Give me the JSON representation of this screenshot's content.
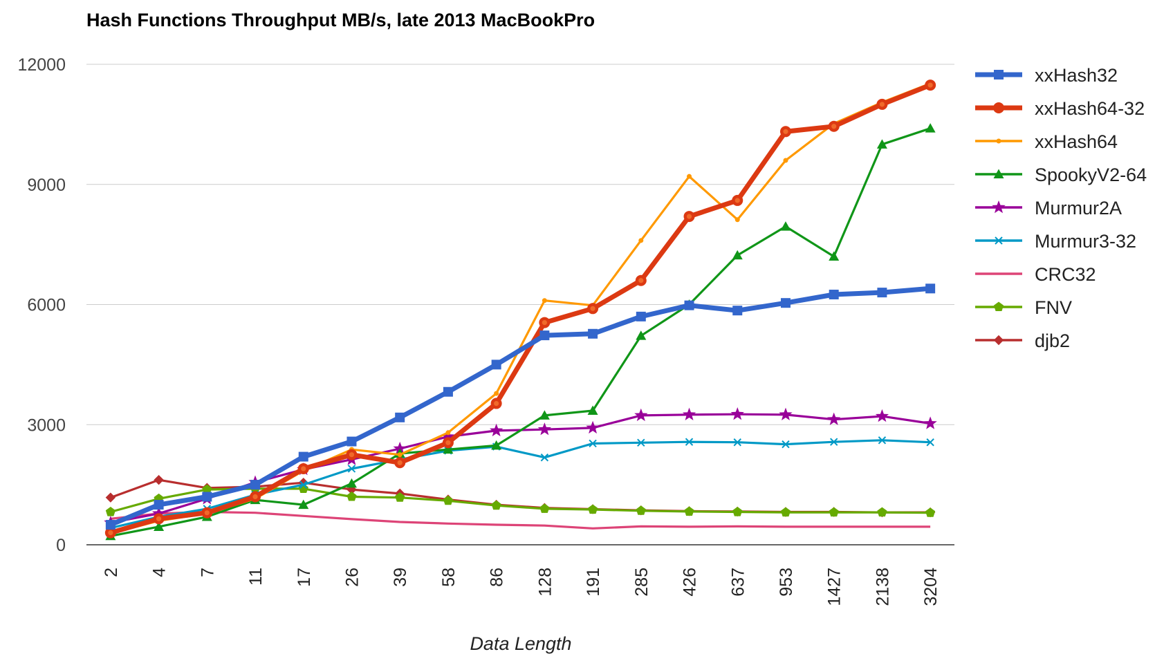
{
  "chart_data": {
    "type": "line",
    "title": "Hash Functions Throughput MB/s, late 2013 MacBookPro",
    "xlabel": "Data Length",
    "ylabel": "",
    "ylim": [
      0,
      12000
    ],
    "yticks": [
      "0",
      "3000",
      "6000",
      "9000",
      "12000"
    ],
    "grid": true,
    "legend_position": "right",
    "categories": [
      "2",
      "4",
      "7",
      "11",
      "17",
      "26",
      "39",
      "58",
      "86",
      "128",
      "191",
      "285",
      "426",
      "637",
      "953",
      "1427",
      "2138",
      "3204"
    ],
    "series": [
      {
        "name": "xxHash32",
        "color": "#3366cc",
        "marker": "square",
        "values": [
          500,
          1000,
          1200,
          1500,
          2200,
          2580,
          3180,
          3820,
          4500,
          5230,
          5270,
          5700,
          5980,
          5850,
          6040,
          6250,
          6300,
          6400
        ]
      },
      {
        "name": "xxHash64-32",
        "color": "#dc3912",
        "marker": "circle",
        "values": [
          300,
          650,
          800,
          1200,
          1900,
          2250,
          2050,
          2550,
          3530,
          5550,
          5900,
          6600,
          8200,
          8600,
          10320,
          10450,
          11000,
          11480
        ]
      },
      {
        "name": "xxHash64",
        "color": "#ff9900",
        "marker": "dot",
        "values": [
          280,
          600,
          780,
          1150,
          1850,
          2380,
          2250,
          2800,
          3780,
          6100,
          5980,
          7600,
          9200,
          8120,
          9600,
          10520,
          11050,
          11520
        ]
      },
      {
        "name": "SpookyV2-64",
        "color": "#109618",
        "marker": "triangle",
        "values": [
          220,
          450,
          700,
          1120,
          1000,
          1530,
          2280,
          2380,
          2480,
          3230,
          3350,
          5220,
          6000,
          7230,
          7950,
          7200,
          10000,
          10400
        ]
      },
      {
        "name": "Murmur2A",
        "color": "#990099",
        "marker": "star",
        "values": [
          550,
          780,
          1150,
          1560,
          1880,
          2130,
          2400,
          2700,
          2850,
          2880,
          2920,
          3230,
          3250,
          3260,
          3250,
          3130,
          3210,
          3030
        ]
      },
      {
        "name": "Murmur3-32",
        "color": "#0099c6",
        "marker": "x",
        "values": [
          420,
          700,
          900,
          1250,
          1500,
          1900,
          2130,
          2350,
          2450,
          2180,
          2530,
          2550,
          2570,
          2560,
          2510,
          2570,
          2610,
          2560
        ]
      },
      {
        "name": "CRC32",
        "color": "#dd4477",
        "marker": "none",
        "values": [
          650,
          780,
          820,
          800,
          720,
          640,
          570,
          530,
          500,
          480,
          410,
          460,
          450,
          460,
          450,
          450,
          450,
          450
        ]
      },
      {
        "name": "FNV",
        "color": "#66aa00",
        "marker": "pentagon",
        "values": [
          820,
          1150,
          1380,
          1400,
          1400,
          1200,
          1180,
          1100,
          980,
          900,
          880,
          850,
          830,
          820,
          810,
          810,
          810,
          800
        ]
      },
      {
        "name": "djb2",
        "color": "#b82e2e",
        "marker": "diamond",
        "values": [
          1180,
          1620,
          1420,
          1450,
          1550,
          1380,
          1280,
          1130,
          1000,
          920,
          890,
          860,
          840,
          830,
          820,
          820,
          810,
          810
        ]
      }
    ]
  }
}
